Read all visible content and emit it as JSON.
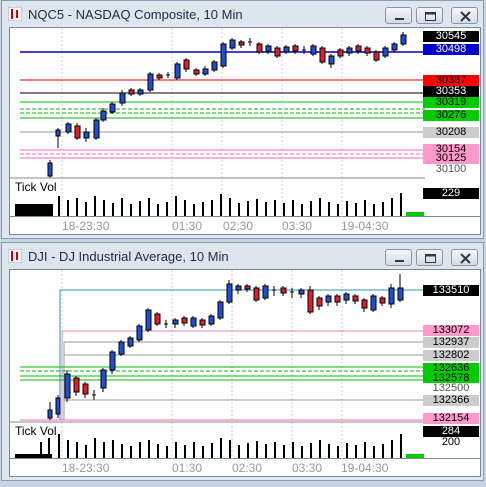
{
  "windows": [
    {
      "title": "NQC5 - NASDAQ Composite, 10 Min",
      "tick_vol_label": "Tick Vol",
      "time_labels": [
        "18-23:30",
        "01:30",
        "02:30",
        "03:30",
        "19-04:30"
      ],
      "price_labels": [
        {
          "text": "30545",
          "bg": "#000000",
          "fg": "#ffffff"
        },
        {
          "text": "30498",
          "bg": "#0000cc",
          "fg": "#ffffff"
        },
        {
          "text": "30387",
          "bg": "#ff0000",
          "fg": "#000000"
        },
        {
          "text": "30353",
          "bg": "#000000",
          "fg": "#ffffff"
        },
        {
          "text": "30319",
          "bg": "#00cc00",
          "fg": "#000000"
        },
        {
          "text": "30276",
          "bg": "#00cc00",
          "fg": "#000000"
        },
        {
          "text": "30208",
          "bg": "#cccccc",
          "fg": "#000000"
        },
        {
          "text": "30154",
          "bg": "#ff99cc",
          "fg": "#000000"
        },
        {
          "text": "30125",
          "bg": "#ff99cc",
          "fg": "#000000"
        },
        {
          "text": "30100",
          "bg": "#ffffff",
          "fg": "#555555"
        }
      ],
      "volume_label": {
        "text": "229",
        "bg": "#000000",
        "fg": "#ffffff"
      }
    },
    {
      "title": "DJI - DJ Industrial Average, 10 Min",
      "tick_vol_label": "Tick Vol",
      "time_labels": [
        "18-23:30",
        "01:30",
        "02:30",
        "03:30",
        "19-04:30"
      ],
      "price_labels": [
        {
          "text": "133510",
          "bg": "#000000",
          "fg": "#ffffff"
        },
        {
          "text": "133072",
          "bg": "#ff99cc",
          "fg": "#000000"
        },
        {
          "text": "132937",
          "bg": "#cccccc",
          "fg": "#000000"
        },
        {
          "text": "132802",
          "bg": "#cccccc",
          "fg": "#000000"
        },
        {
          "text": "132636",
          "bg": "#00cc00",
          "fg": "#000000"
        },
        {
          "text": "132578",
          "bg": "#00cc00",
          "fg": "#000000"
        },
        {
          "text": "132500",
          "bg": "#ffffff",
          "fg": "#555555"
        },
        {
          "text": "132366",
          "bg": "#cccccc",
          "fg": "#000000"
        },
        {
          "text": "132154",
          "bg": "#ff99cc",
          "fg": "#000000"
        }
      ],
      "volume_labels": [
        {
          "text": "284",
          "bg": "#000000",
          "fg": "#ffffff"
        },
        {
          "text": "200",
          "bg": "#ffffff",
          "fg": "#000000"
        }
      ]
    }
  ]
}
